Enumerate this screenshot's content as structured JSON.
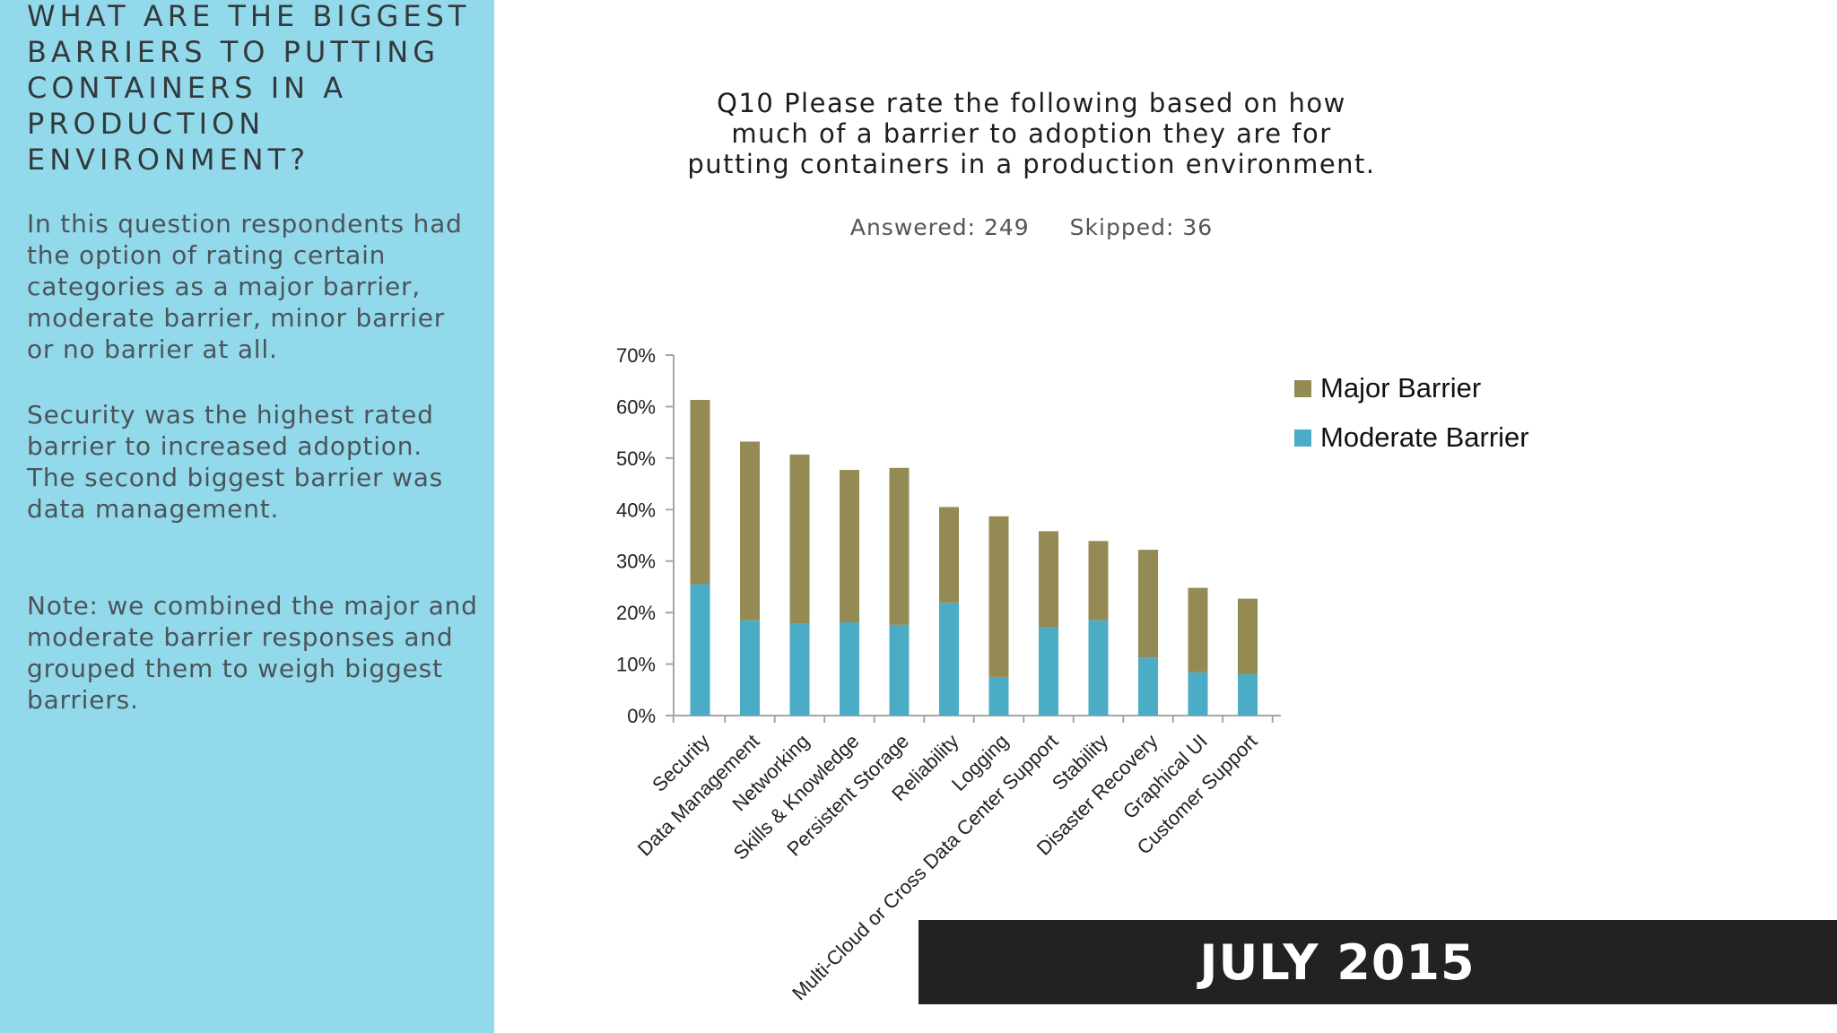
{
  "sidebar": {
    "heading": "WHAT ARE THE BIGGEST BARRIERS TO PUTTING CONTAINERS IN A PRODUCTION ENVIRONMENT?",
    "para1": "In this question respondents had the option of rating certain categories as a major barrier, moderate barrier, minor barrier or no barrier at all.",
    "para2": "Security was the highest rated barrier to increased adoption. The second biggest barrier was data management.",
    "para3": "Note: we combined the major and moderate barrier responses and grouped them to weigh biggest barriers."
  },
  "banner": {
    "text": "JULY 2015"
  },
  "chart_data": {
    "type": "bar",
    "stacked": true,
    "title": "Q10 Please rate the following based on how much of a barrier to adoption they are for putting containers in a production environment.",
    "answered": "Answered: 249",
    "skipped": "Skipped: 36",
    "categories": [
      "Security",
      "Data Management",
      "Networking",
      "Skills & Knowledge",
      "Persistent Storage",
      "Reliability",
      "Logging",
      "Multi-Cloud or Cross Data Center Support",
      "Stability",
      "Disaster Recovery",
      "Graphical UI",
      "Customer Support"
    ],
    "series": [
      {
        "name": "Moderate Barrier",
        "color": "#4bacc6",
        "values": [
          25.5,
          18.5,
          17.8,
          18.1,
          17.6,
          21.9,
          7.5,
          17.1,
          18.5,
          11.3,
          8.4,
          8.1
        ]
      },
      {
        "name": "Major Barrier",
        "color": "#948a54",
        "values": [
          35.8,
          34.7,
          32.9,
          29.6,
          30.5,
          18.6,
          31.2,
          18.7,
          15.4,
          20.9,
          16.4,
          14.6
        ]
      }
    ],
    "yticks": [
      "0%",
      "10%",
      "20%",
      "30%",
      "40%",
      "50%",
      "60%",
      "70%"
    ],
    "ylim": [
      0,
      70
    ],
    "legend": [
      "Major Barrier",
      "Moderate Barrier"
    ],
    "legend_position": "right"
  }
}
